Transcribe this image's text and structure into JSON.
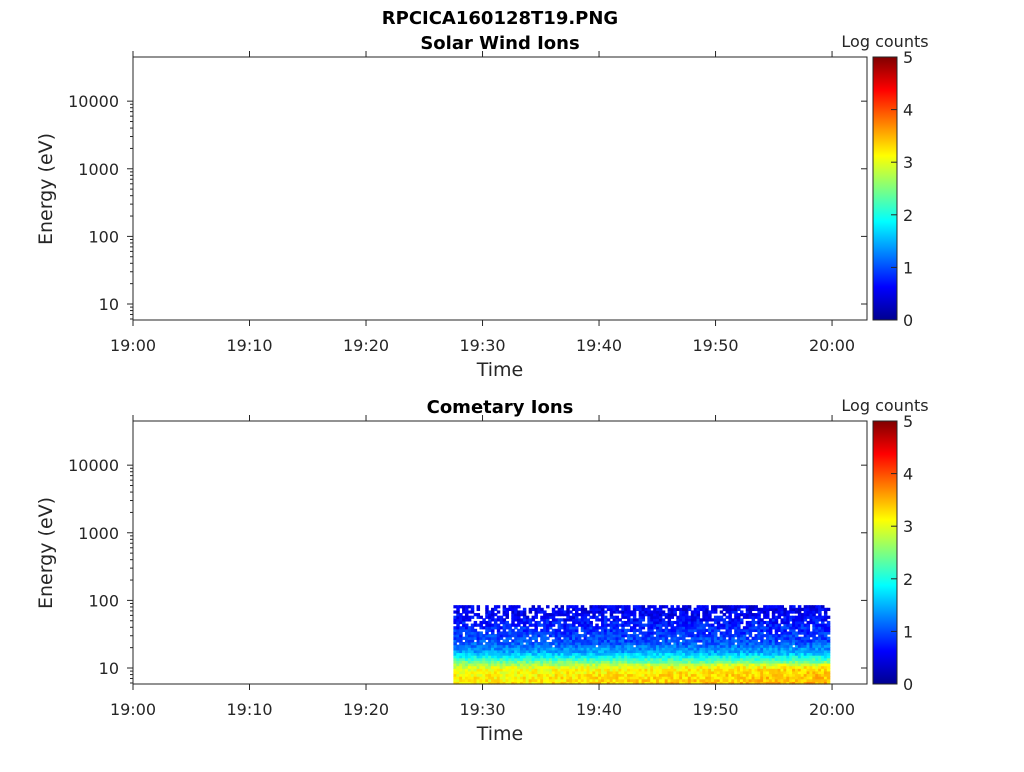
{
  "figure_title": "RPCICA160128T19.PNG",
  "chart_data": [
    {
      "type": "heatmap",
      "title": "Solar Wind Ions",
      "xlabel": "Time",
      "ylabel": "Energy (eV)",
      "x_scale": "time",
      "y_scale": "log",
      "xlim": [
        "19:00",
        "20:03"
      ],
      "ylim": [
        5.8,
        45000
      ],
      "xticks": [
        "19:00",
        "19:10",
        "19:20",
        "19:30",
        "19:40",
        "19:50",
        "20:00"
      ],
      "yticks": [
        "10",
        "100",
        "1000",
        "10000"
      ],
      "colorbar": {
        "label": "Log counts",
        "range": [
          0,
          5
        ],
        "ticks": [
          "0",
          "1",
          "2",
          "3",
          "4",
          "5"
        ],
        "colormap": "jet"
      },
      "data_present": false
    },
    {
      "type": "heatmap",
      "title": "Cometary Ions",
      "xlabel": "Time",
      "ylabel": "Energy (eV)",
      "x_scale": "time",
      "y_scale": "log",
      "xlim": [
        "19:00",
        "20:03"
      ],
      "ylim": [
        5.8,
        45000
      ],
      "xticks": [
        "19:00",
        "19:10",
        "19:20",
        "19:30",
        "19:40",
        "19:50",
        "20:00"
      ],
      "yticks": [
        "10",
        "100",
        "1000",
        "10000"
      ],
      "colorbar": {
        "label": "Log counts",
        "range": [
          0,
          5
        ],
        "ticks": [
          "0",
          "1",
          "2",
          "3",
          "4",
          "5"
        ],
        "colormap": "jet"
      },
      "data_present": true,
      "data_time_range": [
        "19:27.5",
        "19:59.8"
      ],
      "data_energy_range": [
        5.8,
        85
      ],
      "energy_profile": [
        {
          "energy": 6,
          "log_counts": 3.2
        },
        {
          "energy": 8,
          "log_counts": 3.1
        },
        {
          "energy": 10,
          "log_counts": 3.0
        },
        {
          "energy": 13,
          "log_counts": 2.3
        },
        {
          "energy": 17,
          "log_counts": 1.5
        },
        {
          "energy": 25,
          "log_counts": 1.0
        },
        {
          "energy": 40,
          "log_counts": 0.8
        },
        {
          "energy": 60,
          "log_counts": 0.6
        },
        {
          "energy": 85,
          "log_counts": 0.5
        }
      ]
    }
  ]
}
